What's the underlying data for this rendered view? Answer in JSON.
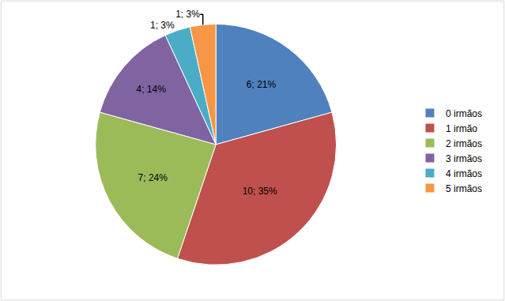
{
  "chart_data": {
    "type": "pie",
    "categories": [
      "0 irmãos",
      "1 irmão",
      "2 irmãos",
      "3 irmãos",
      "4 irmãos",
      "5 irmãos"
    ],
    "values": [
      6,
      10,
      7,
      4,
      1,
      1
    ],
    "value_labels": [
      "6; 21%",
      "10; 35%",
      "7; 24%",
      "4; 14%",
      "1; 3%",
      "1; 3%"
    ],
    "colors": [
      "#4F81BD",
      "#C0504D",
      "#9BBB59",
      "#8064A2",
      "#4BACC6",
      "#F79646"
    ],
    "data_labels": true,
    "legend": "right"
  }
}
